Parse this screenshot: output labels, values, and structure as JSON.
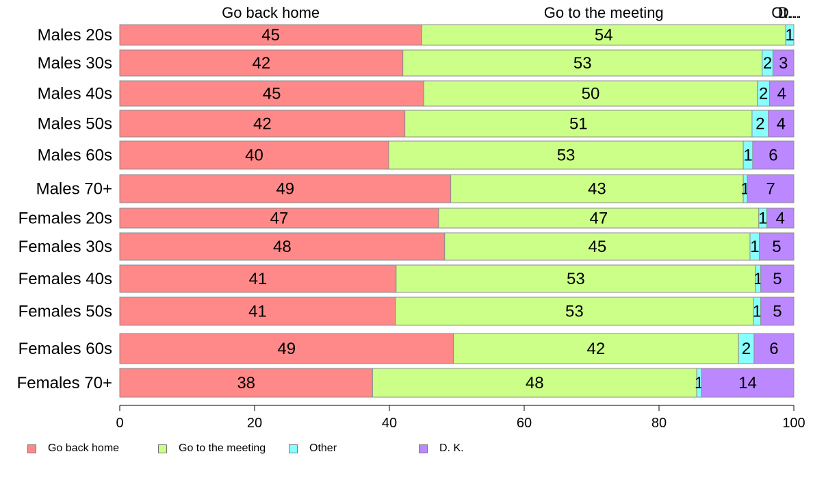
{
  "chart_data": {
    "type": "bar",
    "orientation": "horizontal",
    "stacked": true,
    "categories": [
      "Males 20s",
      "Males 30s",
      "Males 40s",
      "Males 50s",
      "Males 60s",
      "Males 70+",
      "Females 20s",
      "Females 30s",
      "Females 40s",
      "Females 50s",
      "Females 60s",
      "Females 70+"
    ],
    "series": [
      {
        "name": "Go back home",
        "color": "#ff8888",
        "values": [
          44.8,
          42.0,
          45.1,
          42.3,
          39.9,
          49.1,
          47.3,
          48.2,
          41.0,
          40.9,
          49.5,
          37.5
        ]
      },
      {
        "name": "Go to the meeting",
        "color": "#ccff88",
        "values": [
          54.0,
          53.3,
          49.5,
          51.5,
          52.6,
          43.4,
          47.5,
          45.3,
          53.3,
          53.1,
          42.3,
          48.1
        ]
      },
      {
        "name": "Other",
        "color": "#88ffff",
        "values": [
          1.2,
          1.6,
          1.8,
          2.4,
          1.4,
          0.6,
          1.2,
          1.4,
          0.8,
          1.1,
          2.3,
          0.7
        ]
      },
      {
        "name": "D. K.",
        "color": "#bb88ff",
        "values": [
          0,
          3.1,
          3.6,
          3.8,
          6.1,
          6.9,
          4.0,
          5.1,
          4.9,
          4.9,
          5.9,
          13.7
        ]
      }
    ],
    "data_labels": [
      [
        "45",
        "54",
        "1",
        ""
      ],
      [
        "42",
        "53",
        "2",
        "3"
      ],
      [
        "45",
        "50",
        "2",
        "4"
      ],
      [
        "42",
        "51",
        "2",
        "4"
      ],
      [
        "40",
        "53",
        "1",
        "6"
      ],
      [
        "49",
        "43",
        "1",
        "7"
      ],
      [
        "47",
        "47",
        "1",
        "4"
      ],
      [
        "48",
        "45",
        "1",
        "5"
      ],
      [
        "41",
        "53",
        "1",
        "5"
      ],
      [
        "41",
        "53",
        "1",
        "5"
      ],
      [
        "49",
        "42",
        "2",
        "6"
      ],
      [
        "38",
        "48",
        "1",
        "14"
      ]
    ],
    "top_labels": [
      "Go back home",
      "Go to the meeting",
      "Ot...",
      "D..."
    ],
    "xlim": [
      0,
      100
    ],
    "xticks": [
      "0",
      "20",
      "40",
      "60",
      "80",
      "100"
    ],
    "grid": false,
    "legend_position": "bottom-left"
  }
}
